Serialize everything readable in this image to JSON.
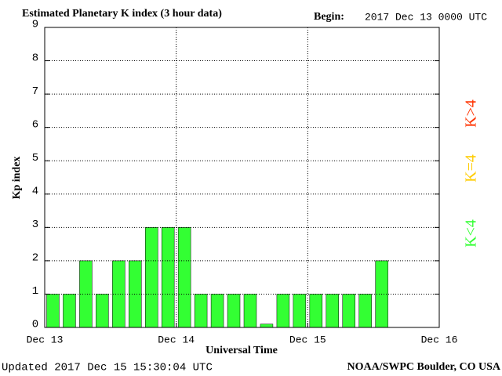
{
  "chart_data": {
    "type": "histogram",
    "title": "Estimated Planetary K index (3 hour data)",
    "begin_label": "Begin:",
    "begin": "2017 Dec 13 0000 UTC",
    "ylabel": "Kp index",
    "xlabel": "Universal Time",
    "updated": "Updated 2017 Dec 15 15:30:04 UTC",
    "credit": "NOAA/SWPC Boulder, CO USA",
    "bins": [
      0,
      3,
      6,
      9,
      12,
      15,
      18,
      21,
      24,
      27,
      30,
      33,
      36,
      39,
      42,
      45,
      48,
      51,
      54,
      57,
      60,
      63
    ],
    "values": [
      1,
      1,
      2,
      1,
      2,
      2,
      3,
      3,
      3,
      1,
      1,
      1,
      1,
      0.1,
      1,
      1,
      1,
      1,
      1,
      1,
      2
    ],
    "color": "#33ff33",
    "xlim": [
      0,
      72
    ],
    "xticks": [
      {
        "value": 0,
        "label": "Dec 13"
      },
      {
        "value": 24,
        "label": "Dec 14"
      },
      {
        "value": 48,
        "label": "Dec 15"
      },
      {
        "value": 72,
        "label": "Dec 16"
      }
    ],
    "ylim": [
      0,
      9
    ],
    "yticks": [
      0,
      1,
      2,
      3,
      4,
      5,
      6,
      7,
      8,
      9
    ],
    "grid": true,
    "legend": [
      {
        "name": "K<4",
        "color": "#33ff33"
      },
      {
        "name": "K=4",
        "color": "#ffcc00"
      },
      {
        "name": "K>4",
        "color": "#ff3300"
      }
    ]
  }
}
